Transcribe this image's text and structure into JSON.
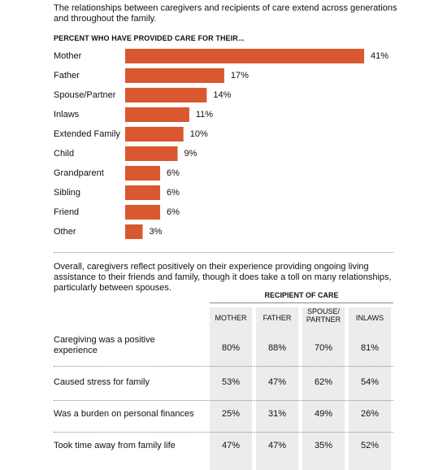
{
  "intro": "The relationships between caregivers and recipients of care extend across generations and throughout the family.",
  "chart_data": {
    "type": "bar",
    "orientation": "horizontal",
    "title": "PERCENT WHO HAVE PROVIDED CARE FOR THEIR...",
    "categories": [
      "Mother",
      "Father",
      "Spouse/Partner",
      "Inlaws",
      "Extended Family",
      "Child",
      "Grandparent",
      "Sibling",
      "Friend",
      "Other"
    ],
    "values": [
      41,
      17,
      14,
      11,
      10,
      9,
      6,
      6,
      6,
      3
    ],
    "value_labels": [
      "41%",
      "17%",
      "14%",
      "11%",
      "10%",
      "9%",
      "6%",
      "6%",
      "6%",
      "3%"
    ],
    "color": "#d9582f"
  },
  "table": {
    "intro": "Overall, caregivers reflect positively on their experience providing ongoing living assistance to their friends and family, though it does take a toll on many relationships, particularly between spouses.",
    "group_header": "RECIPIENT OF CARE",
    "columns": [
      "MOTHER",
      "FATHER",
      "SPOUSE/\nPARTNER",
      "INLAWS"
    ],
    "rows": [
      {
        "label": "Caregiving was a positive experience",
        "cells": [
          "80%",
          "88%",
          "70%",
          "81%"
        ]
      },
      {
        "label": "Caused stress for family",
        "cells": [
          "53%",
          "47%",
          "62%",
          "54%"
        ]
      },
      {
        "label": "Was a burden on personal finances",
        "cells": [
          "25%",
          "31%",
          "49%",
          "26%"
        ]
      },
      {
        "label": "Took time away from family life",
        "cells": [
          "47%",
          "47%",
          "35%",
          "52%"
        ]
      }
    ]
  }
}
